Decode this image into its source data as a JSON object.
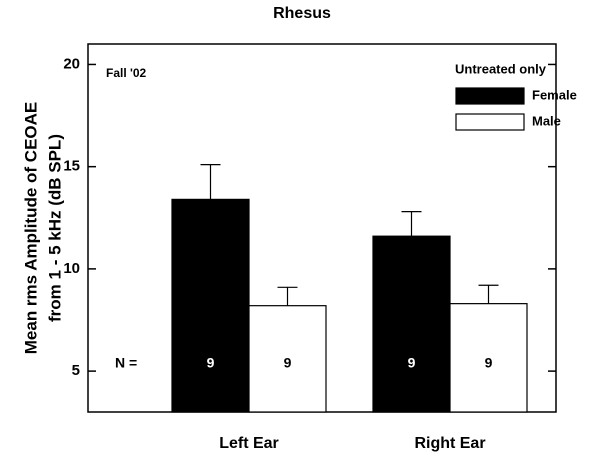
{
  "chart_data": {
    "type": "bar",
    "title": "Rhesus",
    "ylabel": [
      "Mean rms Amplitude of CEOAE",
      "from 1 - 5 kHz (dB SPL)"
    ],
    "annotation": "Fall '02",
    "legend_title": "Untreated only",
    "n_label": "N =",
    "categories": [
      "Left Ear",
      "Right Ear"
    ],
    "series": [
      {
        "name": "Female",
        "color": "#000000",
        "values": [
          13.4,
          11.6
        ],
        "errors": [
          1.7,
          1.2
        ],
        "n": [
          9,
          9
        ]
      },
      {
        "name": "Male",
        "color": "#ffffff",
        "values": [
          8.2,
          8.3
        ],
        "errors": [
          0.9,
          0.9
        ],
        "n": [
          9,
          9
        ]
      }
    ],
    "ylim": [
      3,
      21
    ],
    "yticks": [
      5,
      10,
      15,
      20
    ],
    "legend": "upper right"
  }
}
